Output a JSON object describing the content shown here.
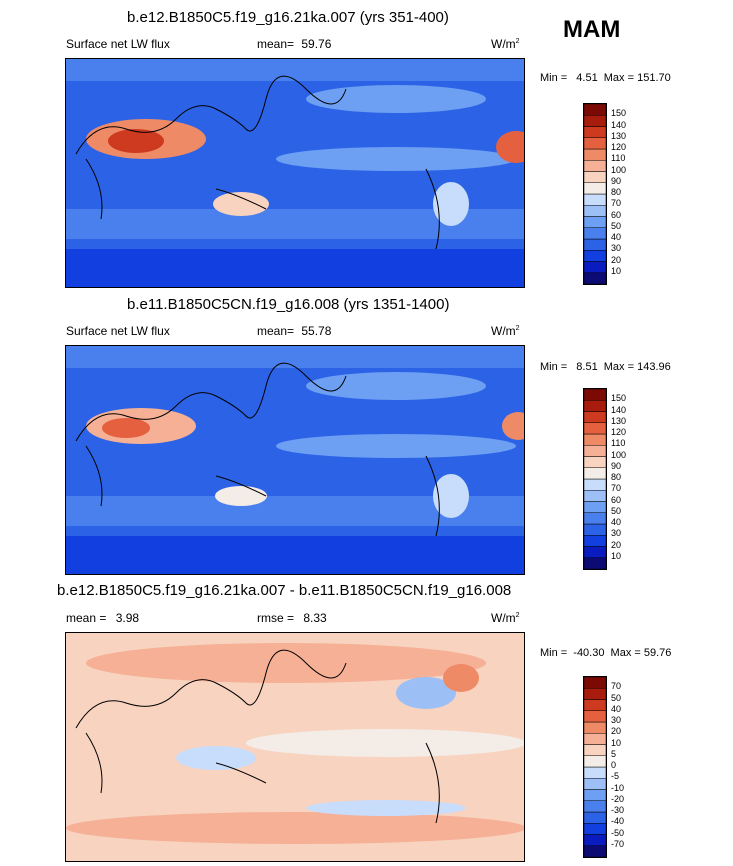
{
  "season": "MAM",
  "panels": [
    {
      "title": "b.e12.B1850C5.f19_g16.21ka.007 (yrs 351-400)",
      "left_label": "Surface net LW flux",
      "mean_label": "mean=",
      "mean_value": "59.76",
      "units": "W/m",
      "units_sup": "2",
      "min_label": "Min =",
      "min_value": "4.51",
      "max_label": "Max =",
      "max_value": "151.70"
    },
    {
      "title": "b.e11.B1850C5CN.f19_g16.008 (yrs 1351-1400)",
      "left_label": "Surface net LW flux",
      "mean_label": "mean=",
      "mean_value": "55.78",
      "units": "W/m",
      "units_sup": "2",
      "min_label": "Min =",
      "min_value": "8.51",
      "max_label": "Max =",
      "max_value": "143.96"
    },
    {
      "title": "b.e12.B1850C5.f19_g16.21ka.007 - b.e11.B1850C5CN.f19_g16.008",
      "mean_label": "mean =",
      "mean_value": "3.98",
      "rmse_label": "rmse =",
      "rmse_value": "8.33",
      "units": "W/m",
      "units_sup": "2",
      "min_label": "Min =",
      "min_value": "-40.30",
      "max_label": "Max =",
      "max_value": "59.76"
    }
  ],
  "chart_data": [
    {
      "type": "heatmap",
      "title": "b.e12.B1850C5.f19_g16.21ka.007 (yrs 351-400)",
      "variable": "Surface net LW flux",
      "units": "W/m2",
      "mean": 59.76,
      "min": 4.51,
      "max": 151.7,
      "levels": [
        10,
        20,
        30,
        40,
        50,
        60,
        70,
        80,
        90,
        100,
        110,
        120,
        130,
        140,
        150
      ],
      "colors": [
        "#0b0b73",
        "#0a1bbf",
        "#123fe0",
        "#2c63e6",
        "#4a80ee",
        "#6d9ff3",
        "#9cc0f6",
        "#c8dcfb",
        "#f4ece6",
        "#f8d3c0",
        "#f5b096",
        "#ef8a67",
        "#e5603f",
        "#cd3a20",
        "#a71c0c",
        "#7c0a04"
      ]
    },
    {
      "type": "heatmap",
      "title": "b.e11.B1850C5CN.f19_g16.008 (yrs 1351-1400)",
      "variable": "Surface net LW flux",
      "units": "W/m2",
      "mean": 55.78,
      "min": 8.51,
      "max": 143.96,
      "levels": [
        10,
        20,
        30,
        40,
        50,
        60,
        70,
        80,
        90,
        100,
        110,
        120,
        130,
        140,
        150
      ],
      "colors": [
        "#0b0b73",
        "#0a1bbf",
        "#123fe0",
        "#2c63e6",
        "#4a80ee",
        "#6d9ff3",
        "#9cc0f6",
        "#c8dcfb",
        "#f4ece6",
        "#f8d3c0",
        "#f5b096",
        "#ef8a67",
        "#e5603f",
        "#cd3a20",
        "#a71c0c",
        "#7c0a04"
      ]
    },
    {
      "type": "heatmap",
      "title": "b.e12.B1850C5.f19_g16.21ka.007 - b.e11.B1850C5CN.f19_g16.008",
      "units": "W/m2",
      "mean": 3.98,
      "rmse": 8.33,
      "min": -40.3,
      "max": 59.76,
      "levels": [
        -70,
        -50,
        -40,
        -30,
        -20,
        -10,
        -5,
        0,
        5,
        10,
        20,
        30,
        40,
        50,
        70
      ],
      "colors": [
        "#0b0b73",
        "#0a1bbf",
        "#123fe0",
        "#2c63e6",
        "#4a80ee",
        "#6d9ff3",
        "#9cc0f6",
        "#c8dcfb",
        "#f4ece6",
        "#f8d3c0",
        "#f5b096",
        "#ef8a67",
        "#e5603f",
        "#cd3a20",
        "#a71c0c",
        "#7c0a04"
      ]
    }
  ]
}
